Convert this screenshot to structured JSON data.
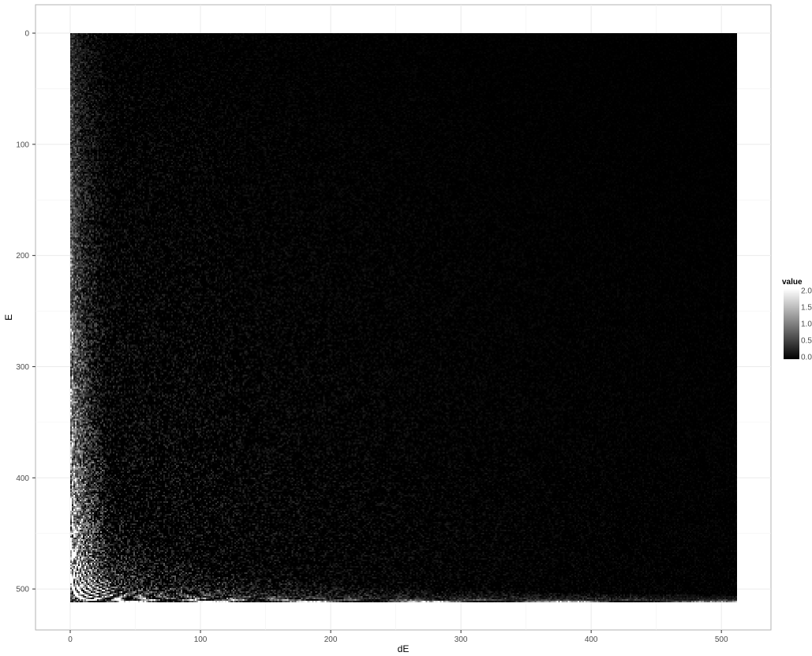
{
  "chart_data": {
    "type": "heatmap",
    "title": "",
    "xlabel": "dE",
    "ylabel": "E",
    "xlim": [
      -40,
      540
    ],
    "ylim": [
      -25,
      537
    ],
    "x_range": [
      0,
      512
    ],
    "y_range": [
      0,
      512
    ],
    "y_reversed": true,
    "x_ticks": [
      0,
      100,
      200,
      300,
      400,
      500
    ],
    "y_ticks": [
      0,
      100,
      200,
      300,
      400,
      500
    ],
    "grid": true,
    "legend": {
      "title": "value",
      "position": "right",
      "min": 0,
      "max": 2,
      "ticks": [
        "2.0",
        "1.5",
        "1.0",
        "0.5",
        "0.0"
      ],
      "low_color": "#000000",
      "high_color": "#ffffff"
    },
    "pattern": "bright curved bands of the form E ≈ 512 − k / dE, fading with increasing dE; dark background"
  }
}
